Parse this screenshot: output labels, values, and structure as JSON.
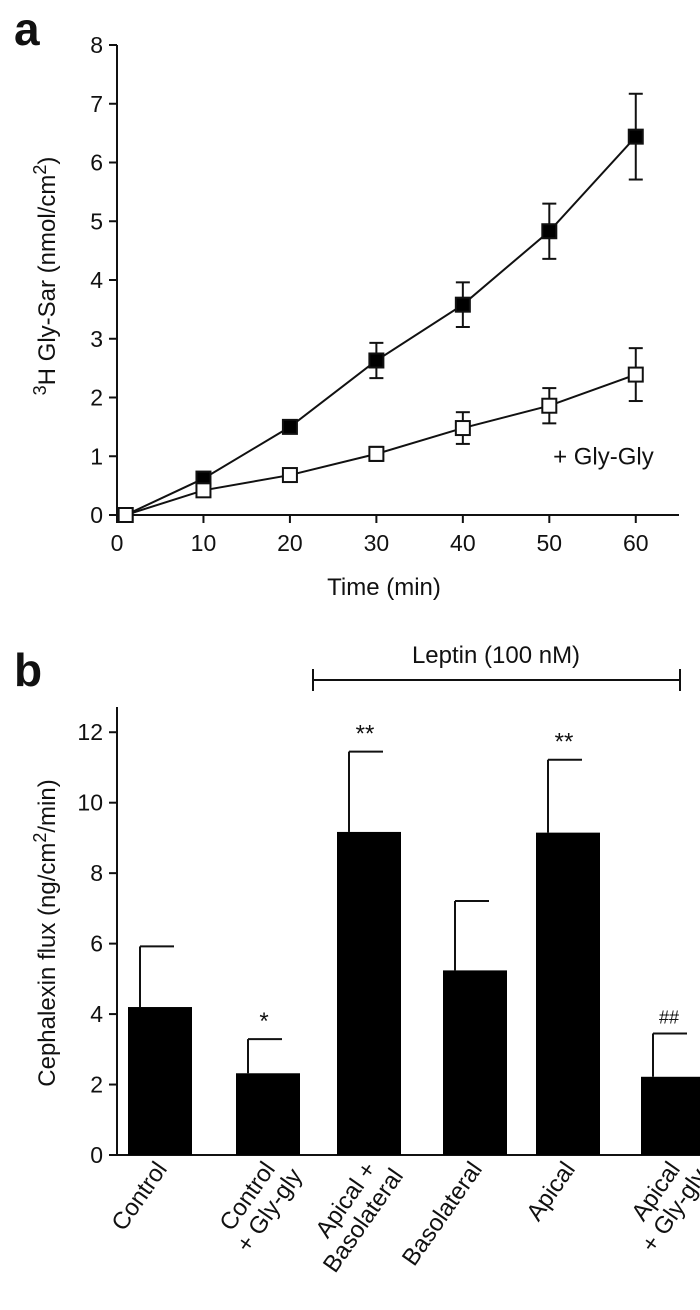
{
  "colors": {
    "ink": "#111111",
    "bar": "#000000",
    "open_marker": "#ffffff"
  },
  "chart_data": [
    {
      "panel": "a",
      "type": "line",
      "xlabel": "Time (min)",
      "ylabel_sup": "3",
      "ylabel_main": "H Gly-Sar (nmol/cm",
      "ylabel_sup2": "2",
      "ylabel_end": ")",
      "xlim": [
        0,
        65
      ],
      "ylim": [
        0,
        8
      ],
      "xticks": [
        0,
        10,
        20,
        30,
        40,
        50,
        60
      ],
      "yticks": [
        0,
        1,
        2,
        3,
        4,
        5,
        6,
        7,
        8
      ],
      "series": [
        {
          "marker": "filled-square",
          "points": [
            {
              "x": 1,
              "y": 0.0,
              "err": 0.0
            },
            {
              "x": 10,
              "y": 0.62,
              "err": 0.06
            },
            {
              "x": 20,
              "y": 1.5,
              "err": 0.08
            },
            {
              "x": 30,
              "y": 2.63,
              "err": 0.3
            },
            {
              "x": 40,
              "y": 3.58,
              "err": 0.38
            },
            {
              "x": 50,
              "y": 4.83,
              "err": 0.47
            },
            {
              "x": 60,
              "y": 6.44,
              "err": 0.73
            }
          ]
        },
        {
          "name": "+ Gly-Gly",
          "marker": "open-square",
          "points": [
            {
              "x": 1,
              "y": 0.0,
              "err": 0.0
            },
            {
              "x": 10,
              "y": 0.42,
              "err": 0.05
            },
            {
              "x": 20,
              "y": 0.68,
              "err": 0.06
            },
            {
              "x": 30,
              "y": 1.04,
              "err": 0.12
            },
            {
              "x": 40,
              "y": 1.48,
              "err": 0.27
            },
            {
              "x": 50,
              "y": 1.86,
              "err": 0.3
            },
            {
              "x": 60,
              "y": 2.39,
              "err": 0.45
            }
          ]
        }
      ]
    },
    {
      "panel": "b",
      "type": "bar",
      "ylabel_main": "Cephalexin flux (ng/cm",
      "ylabel_sup": "2",
      "ylabel_end": "/min)",
      "ylim": [
        0,
        13
      ],
      "yticks": [
        0,
        2,
        4,
        6,
        8,
        10,
        12
      ],
      "bracket_label": "Leptin (100 nM)",
      "categories": [
        {
          "line1": "Control",
          "line2": ""
        },
        {
          "line1": "Control",
          "line2": "+ Gly-gly"
        },
        {
          "line1": "Apical +",
          "line2": "Basolateral"
        },
        {
          "line1": "Basolateral",
          "line2": ""
        },
        {
          "line1": "Apical",
          "line2": ""
        },
        {
          "line1": "Apical",
          "line2": "+ Gly-gly"
        }
      ],
      "values": [
        4.2,
        2.32,
        9.17,
        5.24,
        9.15,
        2.22
      ],
      "errors": [
        1.72,
        0.97,
        2.28,
        1.97,
        2.07,
        1.23
      ],
      "significance": [
        "",
        "*",
        "**",
        "",
        "**",
        "##"
      ]
    }
  ]
}
